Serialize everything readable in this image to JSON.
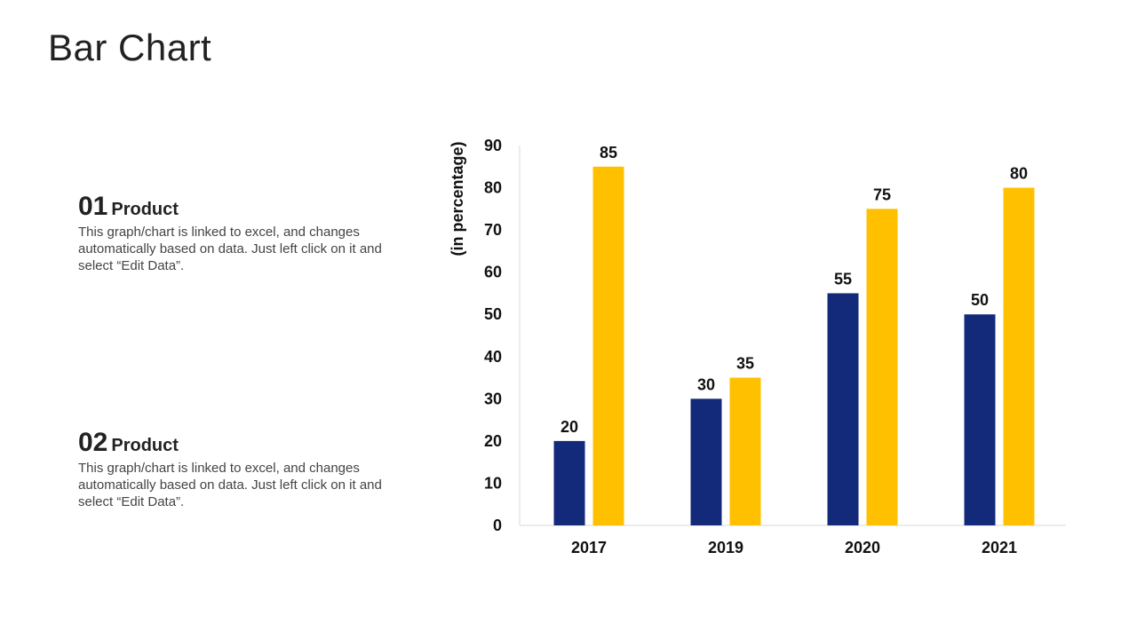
{
  "page_title": "Bar Chart",
  "products": [
    {
      "number": "01",
      "label": "Product",
      "description": "This graph/chart is linked to excel, and changes automatically based on data. Just left click on it and select “Edit Data”."
    },
    {
      "number": "02",
      "label": "Product",
      "description": "This graph/chart is linked to excel, and changes automatically based on data. Just left click on it and select “Edit Data”."
    }
  ],
  "chart_data": {
    "type": "bar",
    "categories": [
      "2017",
      "2019",
      "2020",
      "2021"
    ],
    "series": [
      {
        "values": [
          20,
          30,
          55,
          50
        ],
        "color": "#13297A"
      },
      {
        "values": [
          85,
          35,
          75,
          80
        ],
        "color": "#FFC000"
      }
    ],
    "ylabel": "(in percentage)",
    "ylim": [
      0,
      90
    ],
    "yticks": [
      0,
      10,
      20,
      30,
      40,
      50,
      60,
      70,
      80,
      90
    ],
    "grid": false,
    "data_labels": true
  }
}
